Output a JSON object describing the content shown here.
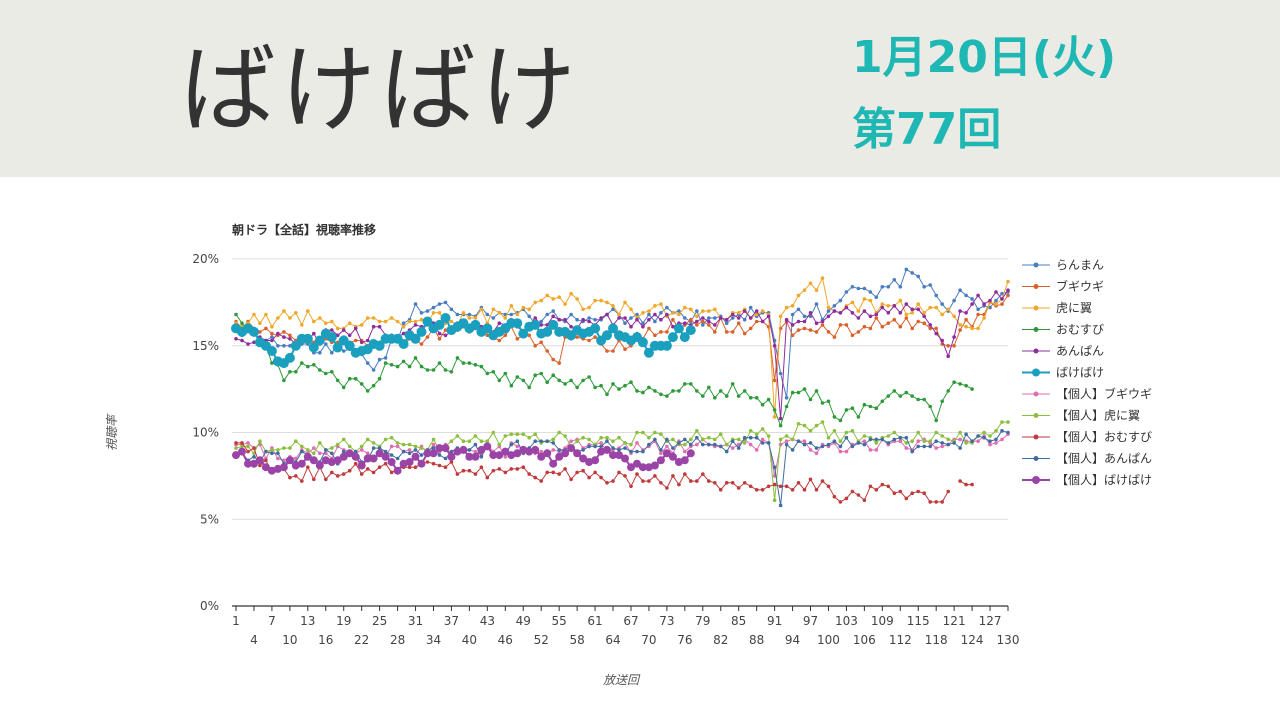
{
  "header": {
    "show_title": "ばけばけ",
    "date": "1月20日(火)",
    "episode": "第77回"
  },
  "chart_data": {
    "type": "line",
    "title": "朝ドラ【全話】視聴率推移",
    "xlabel": "放送回",
    "ylabel": "視聴率",
    "xlim": [
      1,
      130
    ],
    "ylim": [
      0,
      20
    ],
    "y_ticks": [
      "0%",
      "5%",
      "10%",
      "15%",
      "20%"
    ],
    "x_ticks_top": [
      1,
      7,
      13,
      19,
      25,
      31,
      37,
      43,
      49,
      55,
      61,
      67,
      73,
      79,
      85,
      91,
      97,
      103,
      109,
      115,
      121,
      127
    ],
    "x_ticks_bottom": [
      4,
      10,
      16,
      22,
      28,
      34,
      40,
      46,
      52,
      58,
      64,
      70,
      76,
      82,
      88,
      94,
      100,
      106,
      112,
      118,
      124,
      130
    ],
    "grid": true,
    "legend_position": "right",
    "series": [
      {
        "name": "らんまん",
        "color": "#4a7dbf",
        "episodes": 130,
        "anchors": [
          [
            1,
            16.1
          ],
          [
            10,
            15.0
          ],
          [
            20,
            14.8
          ],
          [
            24,
            13.6
          ],
          [
            30,
            16.5
          ],
          [
            31,
            17.4
          ],
          [
            40,
            16.8
          ],
          [
            50,
            16.7
          ],
          [
            60,
            16.6
          ],
          [
            70,
            16.8
          ],
          [
            80,
            16.6
          ],
          [
            90,
            16.9
          ],
          [
            93,
            12.0
          ],
          [
            94,
            16.8
          ],
          [
            100,
            17.0
          ],
          [
            104,
            18.4
          ],
          [
            108,
            17.8
          ],
          [
            114,
            19.2
          ],
          [
            120,
            17.0
          ],
          [
            122,
            18.2
          ],
          [
            126,
            17.3
          ],
          [
            130,
            18.1
          ]
        ]
      },
      {
        "name": "ブギウギ",
        "color": "#d9622b",
        "episodes": 130,
        "anchors": [
          [
            1,
            16.4
          ],
          [
            10,
            15.6
          ],
          [
            20,
            15.2
          ],
          [
            30,
            15.4
          ],
          [
            40,
            15.8
          ],
          [
            50,
            15.6
          ],
          [
            55,
            14.0
          ],
          [
            56,
            15.5
          ],
          [
            60,
            15.3
          ],
          [
            64,
            14.7
          ],
          [
            70,
            16.0
          ],
          [
            80,
            16.2
          ],
          [
            90,
            16.1
          ],
          [
            91,
            13.0
          ],
          [
            92,
            16.0
          ],
          [
            100,
            15.8
          ],
          [
            110,
            16.3
          ],
          [
            118,
            16.0
          ],
          [
            120,
            15.0
          ],
          [
            125,
            16.8
          ],
          [
            130,
            17.9
          ]
        ]
      },
      {
        "name": "虎に翼",
        "color": "#f0a72a",
        "episodes": 130,
        "anchors": [
          [
            1,
            16.3
          ],
          [
            10,
            16.6
          ],
          [
            20,
            16.3
          ],
          [
            30,
            16.4
          ],
          [
            40,
            16.6
          ],
          [
            50,
            17.1
          ],
          [
            55,
            17.8
          ],
          [
            60,
            17.2
          ],
          [
            70,
            17.0
          ],
          [
            80,
            17.0
          ],
          [
            90,
            16.8
          ],
          [
            91,
            10.9
          ],
          [
            92,
            16.7
          ],
          [
            99,
            18.9
          ],
          [
            100,
            17.2
          ],
          [
            110,
            17.3
          ],
          [
            120,
            17.1
          ],
          [
            124,
            16.0
          ],
          [
            126,
            16.6
          ],
          [
            130,
            18.7
          ]
        ]
      },
      {
        "name": "おむすび",
        "color": "#2f9a3a",
        "episodes": 124,
        "anchors": [
          [
            1,
            16.8
          ],
          [
            6,
            15.0
          ],
          [
            9,
            13.0
          ],
          [
            12,
            14.0
          ],
          [
            18,
            13.0
          ],
          [
            24,
            12.7
          ],
          [
            26,
            14.0
          ],
          [
            32,
            13.8
          ],
          [
            40,
            14.0
          ],
          [
            45,
            13.0
          ],
          [
            55,
            13.0
          ],
          [
            62,
            12.7
          ],
          [
            70,
            12.6
          ],
          [
            78,
            12.4
          ],
          [
            86,
            12.4
          ],
          [
            90,
            11.9
          ],
          [
            92,
            10.4
          ],
          [
            94,
            12.3
          ],
          [
            100,
            11.8
          ],
          [
            102,
            10.7
          ],
          [
            110,
            12.1
          ],
          [
            116,
            11.9
          ],
          [
            118,
            10.7
          ],
          [
            121,
            12.9
          ],
          [
            124,
            12.5
          ]
        ]
      },
      {
        "name": "あんぱん",
        "color": "#8e2c9e",
        "episodes": 130,
        "anchors": [
          [
            1,
            15.4
          ],
          [
            10,
            15.4
          ],
          [
            20,
            15.6
          ],
          [
            30,
            15.9
          ],
          [
            40,
            16.1
          ],
          [
            50,
            16.2
          ],
          [
            60,
            16.4
          ],
          [
            70,
            16.5
          ],
          [
            80,
            16.4
          ],
          [
            90,
            16.7
          ],
          [
            91,
            15.0
          ],
          [
            92,
            10.8
          ],
          [
            93,
            16.5
          ],
          [
            100,
            16.7
          ],
          [
            110,
            16.9
          ],
          [
            115,
            17.1
          ],
          [
            120,
            14.4
          ],
          [
            122,
            17.0
          ],
          [
            130,
            18.2
          ]
        ]
      },
      {
        "name": "ばけばけ",
        "color": "#1b9fbf",
        "episodes": 77,
        "marker_size": 5,
        "anchors": [
          [
            1,
            16.0
          ],
          [
            5,
            15.2
          ],
          [
            8,
            14.1
          ],
          [
            11,
            15.0
          ],
          [
            15,
            15.3
          ],
          [
            20,
            15.0
          ],
          [
            25,
            15.0
          ],
          [
            30,
            15.6
          ],
          [
            35,
            16.2
          ],
          [
            40,
            16.0
          ],
          [
            45,
            15.8
          ],
          [
            50,
            16.1
          ],
          [
            55,
            15.8
          ],
          [
            60,
            15.8
          ],
          [
            66,
            15.5
          ],
          [
            70,
            14.6
          ],
          [
            74,
            15.5
          ],
          [
            77,
            15.9
          ]
        ]
      },
      {
        "name": "【個人】ブギウギ",
        "color": "#e06cb1",
        "episodes": 130,
        "anchors": [
          [
            1,
            9.3
          ],
          [
            10,
            8.6
          ],
          [
            20,
            8.9
          ],
          [
            30,
            9.0
          ],
          [
            40,
            9.0
          ],
          [
            50,
            9.1
          ],
          [
            60,
            9.3
          ],
          [
            70,
            9.2
          ],
          [
            80,
            9.3
          ],
          [
            90,
            9.4
          ],
          [
            91,
            7.5
          ],
          [
            92,
            9.3
          ],
          [
            100,
            9.2
          ],
          [
            110,
            9.3
          ],
          [
            120,
            9.3
          ],
          [
            130,
            9.9
          ]
        ]
      },
      {
        "name": "【個人】虎に翼",
        "color": "#8bbf3d",
        "episodes": 130,
        "anchors": [
          [
            1,
            9.1
          ],
          [
            10,
            9.1
          ],
          [
            20,
            9.2
          ],
          [
            30,
            9.3
          ],
          [
            40,
            9.5
          ],
          [
            50,
            9.7
          ],
          [
            60,
            9.6
          ],
          [
            70,
            9.7
          ],
          [
            80,
            9.7
          ],
          [
            90,
            9.8
          ],
          [
            91,
            6.1
          ],
          [
            92,
            9.6
          ],
          [
            99,
            10.6
          ],
          [
            100,
            9.7
          ],
          [
            110,
            9.8
          ],
          [
            120,
            9.6
          ],
          [
            127,
            9.8
          ],
          [
            130,
            10.6
          ]
        ]
      },
      {
        "name": "【個人】おむすび",
        "color": "#c0393b",
        "episodes": 124,
        "anchors": [
          [
            1,
            9.4
          ],
          [
            10,
            7.4
          ],
          [
            20,
            7.8
          ],
          [
            30,
            8.0
          ],
          [
            40,
            7.8
          ],
          [
            50,
            7.6
          ],
          [
            60,
            7.4
          ],
          [
            70,
            7.2
          ],
          [
            80,
            7.2
          ],
          [
            90,
            6.9
          ],
          [
            91,
            7.0
          ],
          [
            100,
            6.9
          ],
          [
            102,
            6.0
          ],
          [
            110,
            6.9
          ],
          [
            118,
            6.0
          ],
          [
            120,
            6.6
          ],
          [
            121,
            null
          ],
          [
            122,
            7.2
          ],
          [
            124,
            7.0
          ]
        ]
      },
      {
        "name": "【個人】あんぱん",
        "color": "#3f6d9e",
        "episodes": 130,
        "anchors": [
          [
            1,
            8.6
          ],
          [
            10,
            8.5
          ],
          [
            20,
            8.7
          ],
          [
            30,
            8.8
          ],
          [
            40,
            9.0
          ],
          [
            50,
            9.1
          ],
          [
            60,
            9.2
          ],
          [
            70,
            9.3
          ],
          [
            80,
            9.3
          ],
          [
            90,
            9.4
          ],
          [
            91,
            8.0
          ],
          [
            92,
            5.8
          ],
          [
            93,
            9.3
          ],
          [
            100,
            9.3
          ],
          [
            110,
            9.4
          ],
          [
            120,
            9.3
          ],
          [
            130,
            10.0
          ]
        ]
      },
      {
        "name": "【個人】ばけばけ",
        "color": "#9a44a8",
        "episodes": 77,
        "marker_size": 4,
        "anchors": [
          [
            1,
            8.7
          ],
          [
            5,
            8.4
          ],
          [
            8,
            7.9
          ],
          [
            12,
            8.2
          ],
          [
            18,
            8.4
          ],
          [
            24,
            8.5
          ],
          [
            29,
            8.2
          ],
          [
            34,
            8.8
          ],
          [
            40,
            8.6
          ],
          [
            46,
            8.9
          ],
          [
            52,
            8.6
          ],
          [
            58,
            8.8
          ],
          [
            64,
            8.7
          ],
          [
            70,
            8.0
          ],
          [
            74,
            8.6
          ],
          [
            77,
            8.8
          ]
        ]
      }
    ]
  }
}
